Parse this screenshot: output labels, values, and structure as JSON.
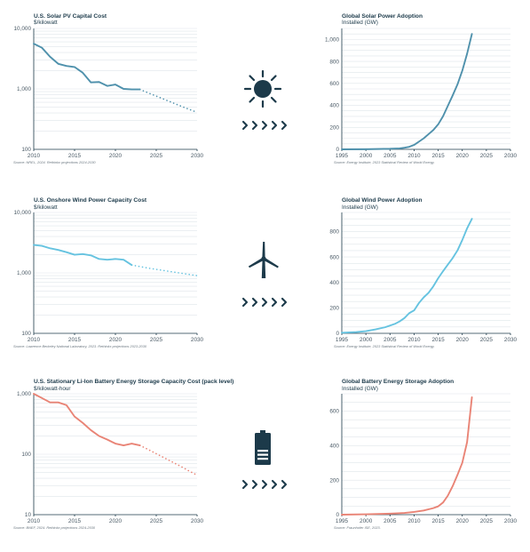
{
  "chart_data": [
    {
      "id": "solar-cost",
      "type": "line",
      "title": "U.S. Solar PV Capital Cost",
      "ylabel": "$/kilowatt",
      "yscale": "log",
      "ylim": [
        100,
        10000
      ],
      "yticks": [
        100,
        1000,
        10000
      ],
      "ytick_labels": [
        "100",
        "1,000",
        "10,000"
      ],
      "xlim": [
        2010,
        2030
      ],
      "xticks": [
        2010,
        2015,
        2020,
        2025,
        2030
      ],
      "source": "Source: NREL, 2024. Rethinkx projections 2024-2030",
      "color": "#4f91ac",
      "series": [
        {
          "style": "solid",
          "x": [
            2010,
            2011,
            2012,
            2013,
            2014,
            2015,
            2016,
            2017,
            2018,
            2019,
            2020,
            2021,
            2022,
            2023
          ],
          "y": [
            5600,
            4800,
            3400,
            2600,
            2400,
            2300,
            1850,
            1280,
            1300,
            1120,
            1180,
            1000,
            980,
            980
          ]
        },
        {
          "style": "dotted",
          "x": [
            2023,
            2024,
            2025,
            2026,
            2027,
            2028,
            2029,
            2030
          ],
          "y": [
            980,
            860,
            760,
            670,
            590,
            520,
            460,
            410
          ]
        }
      ]
    },
    {
      "id": "solar-adoption",
      "type": "line",
      "title": "Global Solar Power Adoption",
      "ylabel": "Installed (GW)",
      "yscale": "linear",
      "ylim": [
        0,
        1100
      ],
      "yticks": [
        0,
        200,
        400,
        600,
        800,
        1000
      ],
      "ytick_labels": [
        "0",
        "200",
        "400",
        "600",
        "800",
        "1,000"
      ],
      "xlim": [
        1995,
        2030
      ],
      "xticks": [
        1995,
        2000,
        2005,
        2010,
        2015,
        2020,
        2025,
        2030
      ],
      "source": "Source: Energy Institute, 2023 Statistical Review of World Energy.",
      "color": "#4f91ac",
      "series": [
        {
          "style": "solid",
          "x": [
            1995,
            2000,
            2005,
            2007,
            2008,
            2009,
            2010,
            2011,
            2012,
            2013,
            2014,
            2015,
            2016,
            2017,
            2018,
            2019,
            2020,
            2021,
            2022
          ],
          "y": [
            0,
            1,
            5,
            9,
            15,
            23,
            40,
            70,
            100,
            138,
            176,
            227,
            300,
            395,
            490,
            590,
            715,
            870,
            1050
          ]
        }
      ]
    },
    {
      "id": "wind-cost",
      "type": "line",
      "title": "U.S. Onshore Wind Power Capacity Cost",
      "ylabel": "$/kilowatt",
      "yscale": "log",
      "ylim": [
        100,
        10000
      ],
      "yticks": [
        100,
        1000,
        10000
      ],
      "ytick_labels": [
        "100",
        "1,000",
        "10,000"
      ],
      "xlim": [
        2010,
        2030
      ],
      "xticks": [
        2010,
        2015,
        2020,
        2025,
        2030
      ],
      "source": "Source: Lawrence Berkeley National Laboratory, 2023. Rethinkx projections 2023-2030",
      "color": "#66c3e0",
      "series": [
        {
          "style": "solid",
          "x": [
            2010,
            2011,
            2012,
            2013,
            2014,
            2015,
            2016,
            2017,
            2018,
            2019,
            2020,
            2021,
            2022
          ],
          "y": [
            2900,
            2800,
            2550,
            2400,
            2200,
            2000,
            2050,
            1950,
            1700,
            1650,
            1700,
            1650,
            1350
          ]
        },
        {
          "style": "dotted",
          "x": [
            2022,
            2024,
            2026,
            2028,
            2030
          ],
          "y": [
            1350,
            1200,
            1090,
            990,
            900
          ]
        }
      ]
    },
    {
      "id": "wind-adoption",
      "type": "line",
      "title": "Global Wind Power Adoption",
      "ylabel": "Installed (GW)",
      "yscale": "linear",
      "ylim": [
        0,
        950
      ],
      "yticks": [
        0,
        200,
        400,
        600,
        800
      ],
      "ytick_labels": [
        "0",
        "200",
        "400",
        "600",
        "800"
      ],
      "xlim": [
        1995,
        2030
      ],
      "xticks": [
        1995,
        2000,
        2005,
        2010,
        2015,
        2020,
        2025,
        2030
      ],
      "source": "Source: Energy Institute, 2023 Statistical Review of World Energy.",
      "color": "#66c3e0",
      "series": [
        {
          "style": "solid",
          "x": [
            1995,
            1998,
            2000,
            2002,
            2004,
            2006,
            2007,
            2008,
            2009,
            2010,
            2011,
            2012,
            2013,
            2014,
            2015,
            2016,
            2017,
            2018,
            2019,
            2020,
            2021,
            2022
          ],
          "y": [
            5,
            10,
            17,
            31,
            48,
            74,
            94,
            120,
            159,
            180,
            238,
            283,
            318,
            370,
            433,
            488,
            540,
            591,
            651,
            733,
            825,
            900
          ]
        }
      ]
    },
    {
      "id": "battery-cost",
      "type": "line",
      "title": "U.S. Stationary Li-Ion Battery Energy Storage Capacity Cost (pack level)",
      "ylabel": "$/kilowatt-hour",
      "yscale": "log",
      "ylim": [
        10,
        1000
      ],
      "yticks": [
        10,
        100,
        1000
      ],
      "ytick_labels": [
        "10",
        "100",
        "1,000"
      ],
      "xlim": [
        2010,
        2030
      ],
      "xticks": [
        2010,
        2015,
        2020,
        2025,
        2030
      ],
      "source": "Source: BNEF, 2024. Rethinkx projections 2024-2030",
      "color": "#e98476",
      "series": [
        {
          "style": "solid",
          "x": [
            2010,
            2011,
            2012,
            2013,
            2014,
            2015,
            2016,
            2017,
            2018,
            2019,
            2020,
            2021,
            2022,
            2023
          ],
          "y": [
            1000,
            850,
            720,
            720,
            650,
            420,
            330,
            250,
            200,
            175,
            150,
            140,
            150,
            140
          ]
        },
        {
          "style": "dotted",
          "x": [
            2023,
            2024,
            2025,
            2026,
            2027,
            2028,
            2029,
            2030
          ],
          "y": [
            140,
            120,
            102,
            87,
            74,
            63,
            53,
            45
          ]
        }
      ]
    },
    {
      "id": "battery-adoption",
      "type": "line",
      "title": "Global Battery Energy Storage Adoption",
      "ylabel": "Installed (GW)",
      "yscale": "linear",
      "ylim": [
        0,
        700
      ],
      "yticks": [
        0,
        200,
        400,
        600
      ],
      "ytick_labels": [
        "0",
        "200",
        "400",
        "600"
      ],
      "xlim": [
        1995,
        2030
      ],
      "xticks": [
        1995,
        2000,
        2005,
        2010,
        2015,
        2020,
        2025,
        2030
      ],
      "source": "Source: Fraunhofer ISE, 2023.",
      "color": "#e98476",
      "series": [
        {
          "style": "solid",
          "x": [
            1995,
            2000,
            2005,
            2008,
            2010,
            2012,
            2014,
            2015,
            2016,
            2017,
            2018,
            2019,
            2020,
            2021,
            2022
          ],
          "y": [
            0,
            2,
            6,
            10,
            16,
            24,
            38,
            48,
            70,
            110,
            165,
            230,
            300,
            420,
            680
          ]
        }
      ]
    }
  ],
  "icons": [
    {
      "name": "sun-icon",
      "color": "#1c3a4a"
    },
    {
      "name": "wind-turbine-icon",
      "color": "#1c3a4a"
    },
    {
      "name": "battery-icon",
      "color": "#1c3a4a"
    }
  ]
}
